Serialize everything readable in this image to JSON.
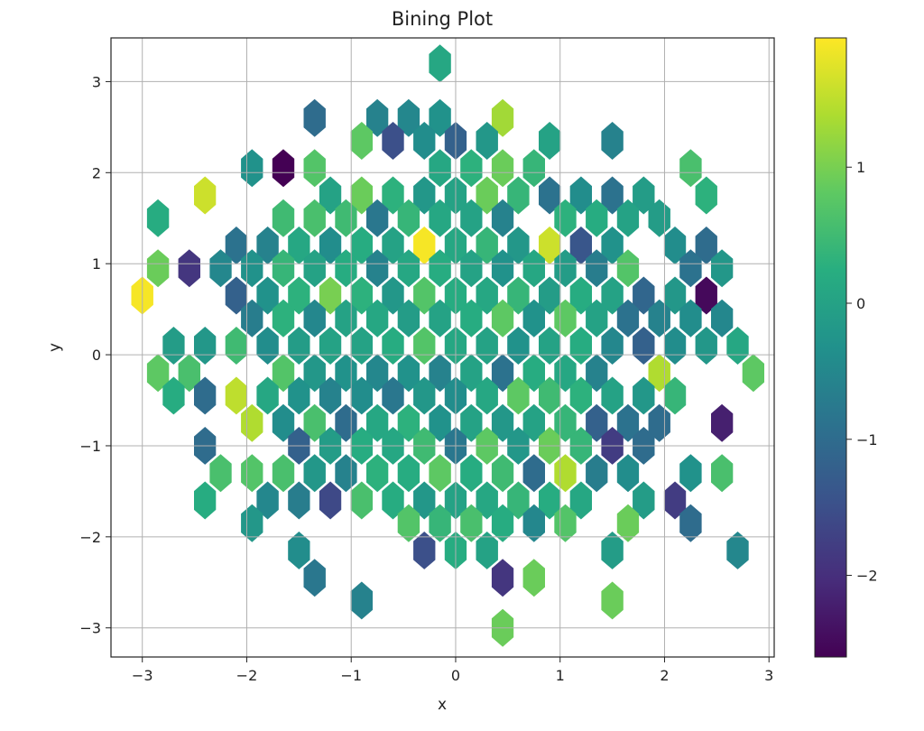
{
  "chart_data": {
    "type": "hexbin",
    "title": "Bining Plot",
    "xlabel": "x",
    "ylabel": "y",
    "xlim": [
      -3.3,
      3.05
    ],
    "ylim": [
      -3.32,
      3.48
    ],
    "xticks": [
      -3,
      -2,
      -1,
      0,
      1,
      2,
      3
    ],
    "yticks": [
      -3,
      -2,
      -1,
      0,
      1,
      2,
      3
    ],
    "xtick_labels": [
      "−3",
      "−2",
      "−1",
      "0",
      "1",
      "2",
      "3"
    ],
    "ytick_labels": [
      "−3",
      "−2",
      "−1",
      "0",
      "1",
      "2",
      "3"
    ],
    "grid": true,
    "colormap": "viridis",
    "colorbar": {
      "min": -2.6,
      "max": 1.95,
      "ticks": [
        1,
        0,
        -1,
        -2
      ],
      "tick_labels": [
        "1",
        "0",
        "−1",
        "−2"
      ]
    },
    "hex_spacing": [
      0.2,
      0.3
    ],
    "cells": [
      [
        -0.15,
        3.2,
        0.1
      ],
      [
        -1.35,
        2.6,
        -1.0
      ],
      [
        -0.75,
        2.6,
        -0.6
      ],
      [
        -0.45,
        2.6,
        -0.5
      ],
      [
        -0.15,
        2.6,
        -0.3
      ],
      [
        0.45,
        2.6,
        1.3
      ],
      [
        -0.9,
        2.35,
        0.8
      ],
      [
        -0.6,
        2.35,
        -1.5
      ],
      [
        -0.3,
        2.35,
        -0.4
      ],
      [
        0.0,
        2.35,
        -1.2
      ],
      [
        0.3,
        2.35,
        -0.2
      ],
      [
        0.9,
        2.35,
        0.0
      ],
      [
        1.5,
        2.35,
        -0.6
      ],
      [
        -1.95,
        2.05,
        -0.3
      ],
      [
        -1.65,
        2.05,
        -2.6
      ],
      [
        -1.35,
        2.05,
        0.7
      ],
      [
        -0.15,
        2.05,
        0.1
      ],
      [
        0.15,
        2.05,
        0.3
      ],
      [
        0.45,
        2.05,
        0.9
      ],
      [
        0.75,
        2.05,
        0.4
      ],
      [
        2.25,
        2.05,
        0.6
      ],
      [
        -2.4,
        1.75,
        1.6
      ],
      [
        -1.2,
        1.75,
        0.0
      ],
      [
        -0.9,
        1.75,
        0.9
      ],
      [
        -0.6,
        1.75,
        0.3
      ],
      [
        -0.3,
        1.75,
        -0.2
      ],
      [
        0.0,
        1.75,
        0.0
      ],
      [
        0.3,
        1.75,
        0.9
      ],
      [
        0.6,
        1.75,
        0.4
      ],
      [
        0.9,
        1.75,
        -0.9
      ],
      [
        1.2,
        1.75,
        -0.4
      ],
      [
        1.5,
        1.75,
        -0.9
      ],
      [
        1.8,
        1.75,
        -0.1
      ],
      [
        2.4,
        1.75,
        0.3
      ],
      [
        -2.85,
        1.5,
        0.2
      ],
      [
        -1.65,
        1.5,
        0.5
      ],
      [
        -1.35,
        1.5,
        0.6
      ],
      [
        -1.05,
        1.5,
        0.5
      ],
      [
        -0.75,
        1.5,
        -0.8
      ],
      [
        -0.45,
        1.5,
        0.4
      ],
      [
        -0.15,
        1.5,
        0.1
      ],
      [
        0.15,
        1.5,
        0.0
      ],
      [
        0.45,
        1.5,
        -0.6
      ],
      [
        1.05,
        1.5,
        0.3
      ],
      [
        1.35,
        1.5,
        0.2
      ],
      [
        1.65,
        1.5,
        0.0
      ],
      [
        1.95,
        1.5,
        -0.1
      ],
      [
        -2.1,
        1.2,
        -0.9
      ],
      [
        -1.8,
        1.2,
        -0.6
      ],
      [
        -1.5,
        1.2,
        0.1
      ],
      [
        -1.2,
        1.2,
        -0.4
      ],
      [
        -0.9,
        1.2,
        0.2
      ],
      [
        -0.6,
        1.2,
        0.0
      ],
      [
        -0.3,
        1.2,
        1.9
      ],
      [
        0.0,
        1.2,
        0.1
      ],
      [
        0.3,
        1.2,
        0.4
      ],
      [
        0.6,
        1.2,
        -0.2
      ],
      [
        0.9,
        1.2,
        1.6
      ],
      [
        1.2,
        1.2,
        -1.4
      ],
      [
        1.5,
        1.2,
        -0.3
      ],
      [
        2.1,
        1.2,
        -0.4
      ],
      [
        2.4,
        1.2,
        -1.0
      ],
      [
        -2.85,
        0.95,
        0.9
      ],
      [
        -2.55,
        0.95,
        -1.9
      ],
      [
        -2.25,
        0.95,
        -0.5
      ],
      [
        -1.95,
        0.95,
        -0.3
      ],
      [
        -1.65,
        0.95,
        0.4
      ],
      [
        -1.35,
        0.95,
        0.0
      ],
      [
        -1.05,
        0.95,
        0.2
      ],
      [
        -0.75,
        0.95,
        -0.6
      ],
      [
        -0.45,
        0.95,
        0.1
      ],
      [
        -0.15,
        0.95,
        0.2
      ],
      [
        0.15,
        0.95,
        0.0
      ],
      [
        0.45,
        0.95,
        -0.3
      ],
      [
        0.75,
        0.95,
        0.1
      ],
      [
        1.05,
        0.95,
        -0.1
      ],
      [
        1.35,
        0.95,
        -0.7
      ],
      [
        1.65,
        0.95,
        0.7
      ],
      [
        2.25,
        0.95,
        -0.9
      ],
      [
        2.55,
        0.95,
        -0.2
      ],
      [
        -3.0,
        0.65,
        1.9
      ],
      [
        -2.1,
        0.65,
        -1.2
      ],
      [
        -1.8,
        0.65,
        -0.3
      ],
      [
        -1.5,
        0.65,
        0.3
      ],
      [
        -1.2,
        0.65,
        1.0
      ],
      [
        -0.9,
        0.65,
        0.3
      ],
      [
        -0.6,
        0.65,
        -0.2
      ],
      [
        -0.3,
        0.65,
        0.7
      ],
      [
        0.0,
        0.65,
        0.2
      ],
      [
        0.3,
        0.65,
        0.1
      ],
      [
        0.6,
        0.65,
        0.4
      ],
      [
        0.9,
        0.65,
        -0.1
      ],
      [
        1.2,
        0.65,
        0.2
      ],
      [
        1.5,
        0.65,
        0.0
      ],
      [
        1.8,
        0.65,
        -1.1
      ],
      [
        2.1,
        0.65,
        -0.2
      ],
      [
        2.4,
        0.65,
        -2.5
      ],
      [
        -1.95,
        0.4,
        -0.7
      ],
      [
        -1.65,
        0.4,
        0.3
      ],
      [
        -1.35,
        0.4,
        -0.5
      ],
      [
        -1.05,
        0.4,
        0.0
      ],
      [
        -0.75,
        0.4,
        0.1
      ],
      [
        -0.45,
        0.4,
        -0.1
      ],
      [
        -0.15,
        0.4,
        0.0
      ],
      [
        0.15,
        0.4,
        0.2
      ],
      [
        0.45,
        0.4,
        0.8
      ],
      [
        0.75,
        0.4,
        -0.3
      ],
      [
        1.05,
        0.4,
        0.8
      ],
      [
        1.35,
        0.4,
        0.0
      ],
      [
        1.65,
        0.4,
        -0.9
      ],
      [
        1.95,
        0.4,
        -0.6
      ],
      [
        2.25,
        0.4,
        -0.4
      ],
      [
        2.55,
        0.4,
        -0.5
      ],
      [
        -2.7,
        0.1,
        -0.1
      ],
      [
        -2.4,
        0.1,
        -0.2
      ],
      [
        -2.1,
        0.1,
        0.5
      ],
      [
        -1.8,
        0.1,
        -0.4
      ],
      [
        -1.5,
        0.1,
        -0.1
      ],
      [
        -1.2,
        0.1,
        0.0
      ],
      [
        -0.9,
        0.1,
        0.0
      ],
      [
        -0.6,
        0.1,
        0.2
      ],
      [
        -0.3,
        0.1,
        0.7
      ],
      [
        0.0,
        0.1,
        0.1
      ],
      [
        0.3,
        0.1,
        0.0
      ],
      [
        0.6,
        0.1,
        -0.3
      ],
      [
        0.9,
        0.1,
        0.0
      ],
      [
        1.2,
        0.1,
        0.2
      ],
      [
        1.5,
        0.1,
        -0.5
      ],
      [
        1.8,
        0.1,
        -1.2
      ],
      [
        2.1,
        0.1,
        -0.4
      ],
      [
        2.4,
        0.1,
        -0.2
      ],
      [
        2.7,
        0.1,
        0.1
      ],
      [
        -2.85,
        -0.2,
        0.8
      ],
      [
        -2.55,
        -0.2,
        0.6
      ],
      [
        -1.65,
        -0.2,
        0.7
      ],
      [
        -1.35,
        -0.2,
        -0.2
      ],
      [
        -1.05,
        -0.2,
        -0.3
      ],
      [
        -0.75,
        -0.2,
        -0.5
      ],
      [
        -0.45,
        -0.2,
        -0.3
      ],
      [
        -0.15,
        -0.2,
        -0.6
      ],
      [
        0.15,
        -0.2,
        0.0
      ],
      [
        0.45,
        -0.2,
        -0.9
      ],
      [
        0.75,
        -0.2,
        0.2
      ],
      [
        1.05,
        -0.2,
        0.1
      ],
      [
        1.35,
        -0.2,
        -0.6
      ],
      [
        1.95,
        -0.2,
        1.4
      ],
      [
        2.85,
        -0.2,
        0.8
      ],
      [
        -2.7,
        -0.45,
        0.2
      ],
      [
        -2.4,
        -0.45,
        -1.0
      ],
      [
        -2.1,
        -0.45,
        1.5
      ],
      [
        -1.8,
        -0.45,
        0.1
      ],
      [
        -1.5,
        -0.45,
        -0.3
      ],
      [
        -1.2,
        -0.45,
        -0.6
      ],
      [
        -0.9,
        -0.45,
        -0.4
      ],
      [
        -0.6,
        -0.45,
        -0.8
      ],
      [
        -0.3,
        -0.45,
        -0.2
      ],
      [
        0.0,
        -0.45,
        -0.4
      ],
      [
        0.3,
        -0.45,
        0.1
      ],
      [
        0.6,
        -0.45,
        0.8
      ],
      [
        0.9,
        -0.45,
        0.5
      ],
      [
        1.2,
        -0.45,
        0.3
      ],
      [
        1.5,
        -0.45,
        0.0
      ],
      [
        1.8,
        -0.45,
        -0.2
      ],
      [
        2.1,
        -0.45,
        0.4
      ],
      [
        -1.95,
        -0.75,
        1.4
      ],
      [
        -1.65,
        -0.75,
        -0.4
      ],
      [
        -1.35,
        -0.75,
        0.6
      ],
      [
        -1.05,
        -0.75,
        -1.0
      ],
      [
        -0.75,
        -0.75,
        0.1
      ],
      [
        -0.45,
        -0.75,
        0.3
      ],
      [
        -0.15,
        -0.75,
        -0.3
      ],
      [
        0.15,
        -0.75,
        0.0
      ],
      [
        0.45,
        -0.75,
        -0.2
      ],
      [
        0.75,
        -0.75,
        0.0
      ],
      [
        1.05,
        -0.75,
        0.4
      ],
      [
        1.35,
        -0.75,
        -1.2
      ],
      [
        1.65,
        -0.75,
        -0.9
      ],
      [
        1.95,
        -0.75,
        -1.0
      ],
      [
        2.55,
        -0.75,
        -2.2
      ],
      [
        -2.4,
        -1.0,
        -1.0
      ],
      [
        -1.5,
        -1.0,
        -1.2
      ],
      [
        -1.2,
        -1.0,
        -0.1
      ],
      [
        -0.9,
        -1.0,
        0.2
      ],
      [
        -0.6,
        -1.0,
        0.1
      ],
      [
        -0.3,
        -1.0,
        0.5
      ],
      [
        0.0,
        -1.0,
        -0.8
      ],
      [
        0.3,
        -1.0,
        0.8
      ],
      [
        0.6,
        -1.0,
        -0.2
      ],
      [
        0.9,
        -1.0,
        0.9
      ],
      [
        1.2,
        -1.0,
        0.4
      ],
      [
        1.5,
        -1.0,
        -1.8
      ],
      [
        1.8,
        -1.0,
        -1.0
      ],
      [
        -2.25,
        -1.3,
        0.6
      ],
      [
        -1.95,
        -1.3,
        0.7
      ],
      [
        -1.65,
        -1.3,
        0.6
      ],
      [
        -1.35,
        -1.3,
        -0.2
      ],
      [
        -1.05,
        -1.3,
        -0.6
      ],
      [
        -0.75,
        -1.3,
        0.3
      ],
      [
        -0.45,
        -1.3,
        0.2
      ],
      [
        -0.15,
        -1.3,
        0.8
      ],
      [
        0.15,
        -1.3,
        0.2
      ],
      [
        0.45,
        -1.3,
        0.5
      ],
      [
        0.75,
        -1.3,
        -1.0
      ],
      [
        1.05,
        -1.3,
        1.4
      ],
      [
        1.35,
        -1.3,
        -0.7
      ],
      [
        1.65,
        -1.3,
        -0.4
      ],
      [
        2.25,
        -1.3,
        -0.3
      ],
      [
        2.55,
        -1.3,
        0.6
      ],
      [
        -2.4,
        -1.6,
        0.2
      ],
      [
        -1.8,
        -1.6,
        -0.5
      ],
      [
        -1.5,
        -1.6,
        -0.7
      ],
      [
        -1.2,
        -1.6,
        -1.6
      ],
      [
        -0.9,
        -1.6,
        0.6
      ],
      [
        -0.6,
        -1.6,
        0.2
      ],
      [
        -0.3,
        -1.6,
        -0.2
      ],
      [
        0.0,
        -1.6,
        0.0
      ],
      [
        0.3,
        -1.6,
        0.1
      ],
      [
        0.6,
        -1.6,
        0.4
      ],
      [
        0.9,
        -1.6,
        0.2
      ],
      [
        1.2,
        -1.6,
        0.1
      ],
      [
        1.8,
        -1.6,
        -0.1
      ],
      [
        2.1,
        -1.6,
        -1.8
      ],
      [
        -1.95,
        -1.85,
        -0.2
      ],
      [
        -0.45,
        -1.85,
        0.7
      ],
      [
        -0.15,
        -1.85,
        0.4
      ],
      [
        0.15,
        -1.85,
        0.6
      ],
      [
        0.45,
        -1.85,
        0.2
      ],
      [
        0.75,
        -1.85,
        -0.5
      ],
      [
        1.05,
        -1.85,
        0.7
      ],
      [
        1.65,
        -1.85,
        0.9
      ],
      [
        2.25,
        -1.85,
        -1.0
      ],
      [
        -1.5,
        -2.15,
        -0.4
      ],
      [
        -0.3,
        -2.15,
        -1.5
      ],
      [
        0.0,
        -2.15,
        0.2
      ],
      [
        0.3,
        -2.15,
        0.0
      ],
      [
        1.5,
        -2.15,
        -0.1
      ],
      [
        2.7,
        -2.15,
        -0.5
      ],
      [
        -1.35,
        -2.45,
        -0.8
      ],
      [
        0.45,
        -2.45,
        -1.9
      ],
      [
        0.75,
        -2.45,
        0.9
      ],
      [
        -0.9,
        -2.7,
        -0.6
      ],
      [
        1.5,
        -2.7,
        0.9
      ],
      [
        0.45,
        -3.0,
        0.9
      ]
    ]
  }
}
